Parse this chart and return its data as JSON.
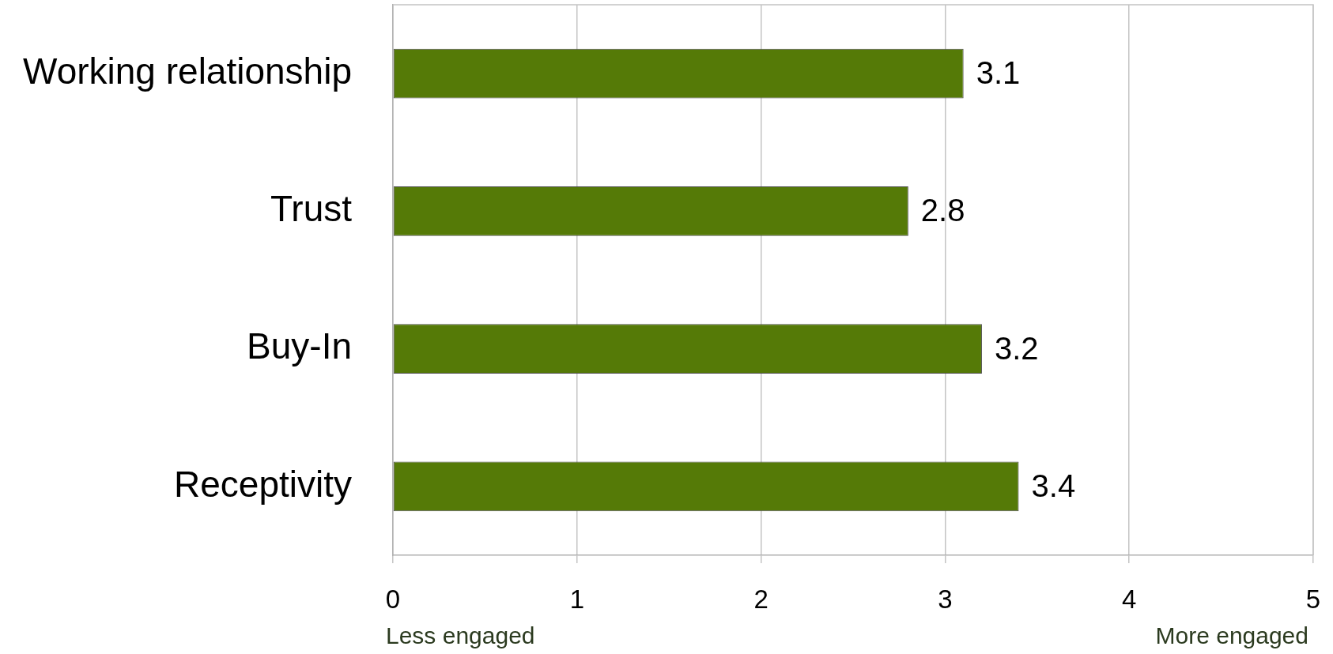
{
  "chart_data": {
    "type": "bar",
    "orientation": "horizontal",
    "categories": [
      "Working relationship",
      "Trust",
      "Buy-In",
      "Receptivity"
    ],
    "values": [
      3.1,
      2.8,
      3.2,
      3.4
    ],
    "color": "#557a07",
    "data_labels": true,
    "xlim": [
      0,
      5
    ],
    "xticks": [
      0,
      1,
      2,
      3,
      4,
      5
    ],
    "grid": "x",
    "annotations": [
      "Less engaged",
      "More engaged"
    ]
  }
}
